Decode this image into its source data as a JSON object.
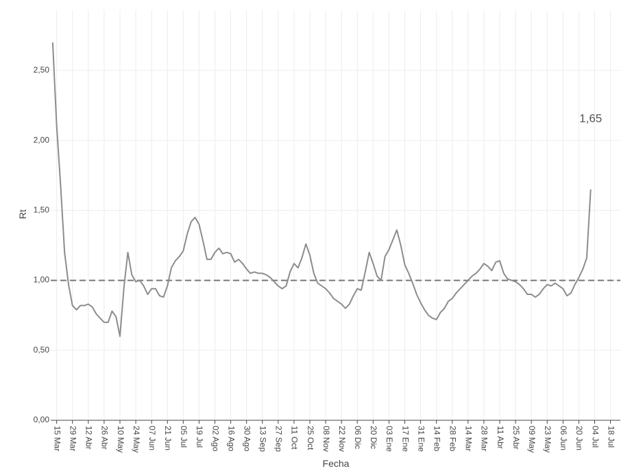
{
  "chart_data": {
    "type": "line",
    "x_label": "Fecha",
    "y_label": "Rt",
    "categories": [
      null,
      "15 Mar",
      null,
      null,
      null,
      "29 Mar",
      null,
      null,
      null,
      "12 Abr",
      null,
      null,
      null,
      "26 Abr",
      null,
      null,
      null,
      "10 May",
      null,
      null,
      null,
      "24 May",
      null,
      null,
      null,
      "07 Jun",
      null,
      null,
      null,
      "21 Jun",
      null,
      null,
      null,
      "05 Jul",
      null,
      null,
      null,
      "19 Jul",
      null,
      null,
      null,
      "02 Ago",
      null,
      null,
      null,
      "16 Ago",
      null,
      null,
      null,
      "30 Ago",
      null,
      null,
      null,
      "13 Sep",
      null,
      null,
      null,
      "27 Sep",
      null,
      null,
      null,
      "11 Oct",
      null,
      null,
      null,
      "25 Oct",
      null,
      null,
      null,
      "08 Nov",
      null,
      null,
      null,
      "22 Nov",
      null,
      null,
      null,
      "06 Dic",
      null,
      null,
      null,
      "20 Dic",
      null,
      null,
      null,
      "03 Ene",
      null,
      null,
      null,
      "17 Ene",
      null,
      null,
      null,
      "31 Ene",
      null,
      null,
      null,
      "14 Feb",
      null,
      null,
      null,
      "28 Feb",
      null,
      null,
      null,
      "14 Mar",
      null,
      null,
      null,
      "28 Mar",
      null,
      null,
      null,
      "11 Abr",
      null,
      null,
      null,
      "25 Abr",
      null,
      null,
      null,
      "09 May",
      null,
      null,
      null,
      "23 May",
      null,
      null,
      null,
      "06 Jun",
      null,
      null,
      null,
      "20 Jun",
      null,
      null,
      null,
      "04 Jul",
      null,
      null,
      null,
      "18 Jul",
      null,
      null
    ],
    "series": [
      {
        "name": "Rt",
        "color": "#8c8c8c",
        "values": [
          2.7,
          2.1,
          1.68,
          1.2,
          0.97,
          0.82,
          0.79,
          0.82,
          0.82,
          0.83,
          0.81,
          0.76,
          0.73,
          0.7,
          0.7,
          0.78,
          0.74,
          0.6,
          0.95,
          1.2,
          1.04,
          0.99,
          1.0,
          0.96,
          0.9,
          0.94,
          0.94,
          0.89,
          0.88,
          0.96,
          1.09,
          1.14,
          1.17,
          1.21,
          1.33,
          1.42,
          1.45,
          1.4,
          1.28,
          1.15,
          1.15,
          1.2,
          1.23,
          1.19,
          1.2,
          1.19,
          1.13,
          1.15,
          1.12,
          1.08,
          1.05,
          1.06,
          1.05,
          1.05,
          1.04,
          1.02,
          0.99,
          0.96,
          0.94,
          0.96,
          1.06,
          1.12,
          1.09,
          1.16,
          1.26,
          1.18,
          1.05,
          0.98,
          0.96,
          0.94,
          0.91,
          0.87,
          0.85,
          0.83,
          0.8,
          0.83,
          0.89,
          0.94,
          0.93,
          1.06,
          1.2,
          1.12,
          1.03,
          1.0,
          1.17,
          1.22,
          1.29,
          1.36,
          1.25,
          1.11,
          1.05,
          0.98,
          0.9,
          0.84,
          0.79,
          0.75,
          0.73,
          0.72,
          0.77,
          0.8,
          0.85,
          0.87,
          0.91,
          0.94,
          0.97,
          1.0,
          1.03,
          1.05,
          1.08,
          1.12,
          1.1,
          1.07,
          1.13,
          1.14,
          1.05,
          1.01,
          1.0,
          0.99,
          0.97,
          0.94,
          0.9,
          0.9,
          0.88,
          0.9,
          0.94,
          0.97,
          0.96,
          0.98,
          0.96,
          0.94,
          0.89,
          0.91,
          0.97,
          1.02,
          1.08,
          1.16,
          1.65,
          null,
          null,
          null,
          null,
          null,
          null,
          null
        ]
      }
    ],
    "annotation": "1,65",
    "reference_line": 1,
    "ylim": [
      0,
      2.93
    ],
    "yticks": [
      {
        "value": 0,
        "label": "0,00"
      },
      {
        "value": 0.5,
        "label": "0,50"
      },
      {
        "value": 1,
        "label": "1,00"
      },
      {
        "value": 1.5,
        "label": "1,50"
      },
      {
        "value": 2,
        "label": "2,00"
      },
      {
        "value": 2.5,
        "label": "2,50"
      }
    ],
    "grid": true
  }
}
